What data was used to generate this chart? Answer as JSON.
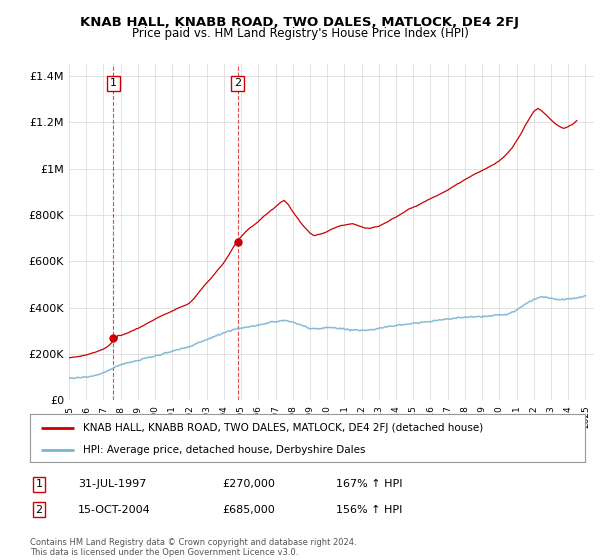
{
  "title": "KNAB HALL, KNABB ROAD, TWO DALES, MATLOCK, DE4 2FJ",
  "subtitle": "Price paid vs. HM Land Registry's House Price Index (HPI)",
  "title_fontsize": 9.5,
  "subtitle_fontsize": 8.5,
  "bg_color": "#ffffff",
  "plot_bg_color": "#ffffff",
  "ylim": [
    0,
    1450000
  ],
  "yticks": [
    0,
    200000,
    400000,
    600000,
    800000,
    1000000,
    1200000,
    1400000
  ],
  "ytick_labels": [
    "£0",
    "£200K",
    "£400K",
    "£600K",
    "£800K",
    "£1M",
    "£1.2M",
    "£1.4M"
  ],
  "sale1_date_x": 1997.58,
  "sale1_price": 270000,
  "sale1_label": "1",
  "sale2_date_x": 2004.79,
  "sale2_price": 685000,
  "sale2_label": "2",
  "hpi_line_color": "#7ab3d4",
  "property_line_color": "#cc0000",
  "sale_marker_color": "#cc0000",
  "dashed_line_color": "#cc0000",
  "legend_property_label": "KNAB HALL, KNABB ROAD, TWO DALES, MATLOCK, DE4 2FJ (detached house)",
  "legend_hpi_label": "HPI: Average price, detached house, Derbyshire Dales",
  "table_row1": [
    "1",
    "31-JUL-1997",
    "£270,000",
    "167% ↑ HPI"
  ],
  "table_row2": [
    "2",
    "15-OCT-2004",
    "£685,000",
    "156% ↑ HPI"
  ],
  "footer": "Contains HM Land Registry data © Crown copyright and database right 2024.\nThis data is licensed under the Open Government Licence v3.0.",
  "xmin": 1995,
  "xmax": 2025.5,
  "hpi_data_x": [
    1995.0,
    1995.08,
    1995.17,
    1995.25,
    1995.33,
    1995.42,
    1995.5,
    1995.58,
    1995.67,
    1995.75,
    1995.83,
    1995.92,
    1996.0,
    1996.08,
    1996.17,
    1996.25,
    1996.33,
    1996.42,
    1996.5,
    1996.58,
    1996.67,
    1996.75,
    1996.83,
    1996.92,
    1997.0,
    1997.08,
    1997.17,
    1997.25,
    1997.33,
    1997.42,
    1997.5,
    1997.58,
    1997.67,
    1997.75,
    1997.83,
    1997.92,
    1998.0,
    1998.5,
    1999.0,
    1999.5,
    2000.0,
    2000.5,
    2001.0,
    2001.5,
    2002.0,
    2002.5,
    2003.0,
    2003.5,
    2004.0,
    2004.5,
    2005.0,
    2005.5,
    2006.0,
    2006.5,
    2007.0,
    2007.5,
    2008.0,
    2008.5,
    2009.0,
    2009.5,
    2010.0,
    2010.5,
    2011.0,
    2011.5,
    2012.0,
    2012.5,
    2013.0,
    2013.5,
    2014.0,
    2014.5,
    2015.0,
    2015.5,
    2016.0,
    2016.5,
    2017.0,
    2017.5,
    2018.0,
    2018.5,
    2019.0,
    2019.5,
    2020.0,
    2020.5,
    2021.0,
    2021.5,
    2022.0,
    2022.5,
    2023.0,
    2023.5,
    2024.0,
    2024.5,
    2025.0
  ],
  "hpi_data_y": [
    95000,
    95500,
    96000,
    96500,
    97000,
    97500,
    98000,
    98500,
    99000,
    99500,
    100000,
    100500,
    101000,
    102000,
    103000,
    104000,
    105000,
    106500,
    108000,
    110000,
    112000,
    114000,
    116000,
    118000,
    120000,
    122000,
    125000,
    128000,
    131000,
    134000,
    137000,
    140000,
    143000,
    146000,
    149000,
    152000,
    155000,
    163000,
    172000,
    182000,
    192000,
    202000,
    213000,
    222000,
    232000,
    248000,
    262000,
    278000,
    292000,
    305000,
    312000,
    318000,
    325000,
    332000,
    340000,
    345000,
    338000,
    325000,
    310000,
    308000,
    315000,
    312000,
    308000,
    305000,
    302000,
    305000,
    310000,
    318000,
    323000,
    328000,
    333000,
    338000,
    342000,
    346000,
    352000,
    356000,
    358000,
    360000,
    362000,
    365000,
    368000,
    372000,
    390000,
    415000,
    435000,
    448000,
    440000,
    435000,
    438000,
    442000,
    450000
  ],
  "prop_data_x": [
    1995.0,
    1995.25,
    1995.5,
    1995.75,
    1996.0,
    1996.25,
    1996.5,
    1996.75,
    1997.0,
    1997.25,
    1997.5,
    1997.75,
    1997.58,
    1998.0,
    1998.5,
    1999.0,
    1999.5,
    2000.0,
    2000.5,
    2001.0,
    2001.5,
    2002.0,
    2002.25,
    2002.5,
    2002.75,
    2003.0,
    2003.25,
    2003.5,
    2003.75,
    2004.0,
    2004.25,
    2004.5,
    2004.79,
    2005.0,
    2005.25,
    2005.5,
    2005.75,
    2006.0,
    2006.25,
    2006.5,
    2006.75,
    2007.0,
    2007.25,
    2007.5,
    2007.75,
    2008.0,
    2008.25,
    2008.5,
    2008.75,
    2009.0,
    2009.25,
    2009.5,
    2009.75,
    2010.0,
    2010.25,
    2010.5,
    2010.75,
    2011.0,
    2011.25,
    2011.5,
    2011.75,
    2012.0,
    2012.25,
    2012.5,
    2012.75,
    2013.0,
    2013.25,
    2013.5,
    2013.75,
    2014.0,
    2014.25,
    2014.5,
    2014.75,
    2015.0,
    2015.25,
    2015.5,
    2015.75,
    2016.0,
    2016.25,
    2016.5,
    2016.75,
    2017.0,
    2017.25,
    2017.5,
    2017.75,
    2018.0,
    2018.25,
    2018.5,
    2018.75,
    2019.0,
    2019.25,
    2019.5,
    2019.75,
    2020.0,
    2020.25,
    2020.5,
    2020.75,
    2021.0,
    2021.25,
    2021.5,
    2021.75,
    2022.0,
    2022.25,
    2022.5,
    2022.75,
    2023.0,
    2023.25,
    2023.5,
    2023.75,
    2024.0,
    2024.25,
    2024.5
  ],
  "prop_data_y": [
    168000,
    172000,
    175000,
    178000,
    181000,
    186000,
    192000,
    198000,
    205000,
    220000,
    240000,
    250000,
    270000,
    270000,
    285000,
    302000,
    320000,
    340000,
    358000,
    375000,
    392000,
    410000,
    430000,
    455000,
    478000,
    500000,
    520000,
    545000,
    568000,
    590000,
    618000,
    648000,
    685000,
    700000,
    720000,
    738000,
    752000,
    768000,
    785000,
    800000,
    815000,
    830000,
    845000,
    858000,
    840000,
    810000,
    785000,
    760000,
    740000,
    720000,
    710000,
    715000,
    720000,
    730000,
    740000,
    748000,
    755000,
    760000,
    765000,
    768000,
    762000,
    755000,
    750000,
    748000,
    752000,
    758000,
    768000,
    778000,
    790000,
    800000,
    812000,
    822000,
    832000,
    840000,
    850000,
    860000,
    870000,
    880000,
    890000,
    900000,
    910000,
    920000,
    932000,
    944000,
    955000,
    965000,
    975000,
    985000,
    995000,
    1005000,
    1015000,
    1025000,
    1035000,
    1048000,
    1062000,
    1080000,
    1100000,
    1130000,
    1160000,
    1195000,
    1228000,
    1255000,
    1268000,
    1255000,
    1238000,
    1218000,
    1200000,
    1188000,
    1178000,
    1185000,
    1195000,
    1210000
  ]
}
